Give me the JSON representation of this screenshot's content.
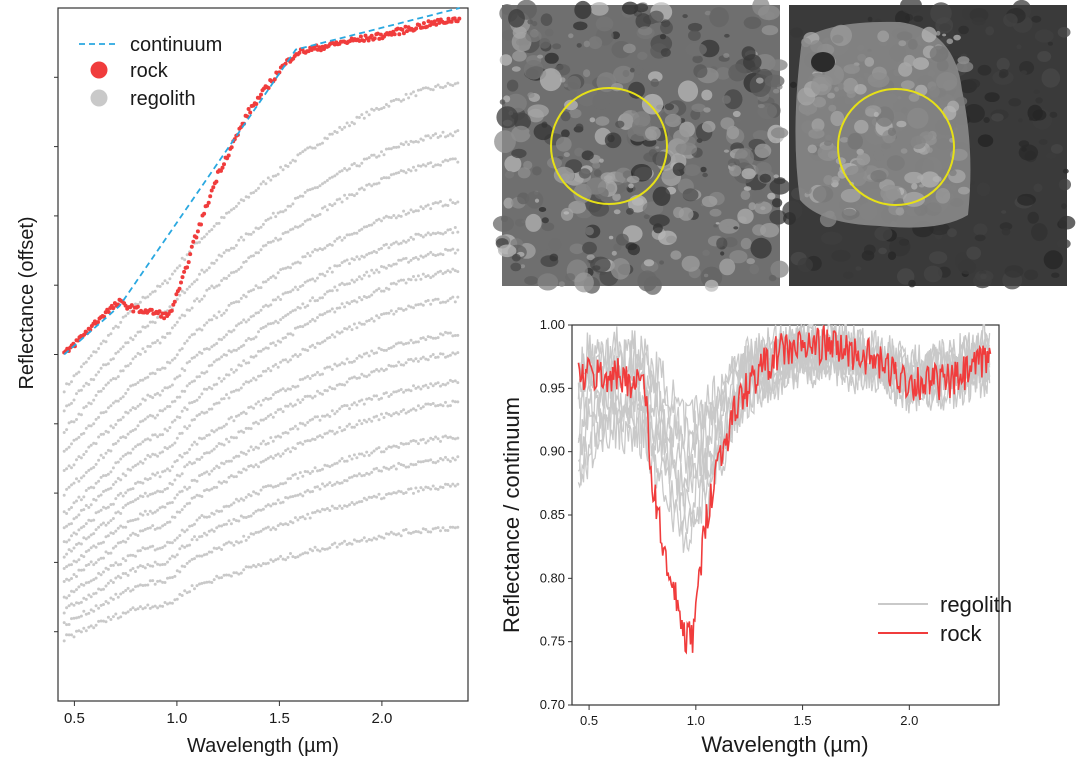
{
  "figure": {
    "photos": [
      {
        "name": "rock-closeup-photo",
        "tone": "#7d7d7d"
      },
      {
        "name": "boulder-photo",
        "tone": "#4a4a4a"
      }
    ],
    "colors": {
      "rock": "#f03c3c",
      "regolith": "#c9c9c9",
      "continuum": "#2aa8e0",
      "circle": "#e6e017",
      "axis": "#333333"
    }
  },
  "chart_data": [
    {
      "type": "scatter",
      "title": "",
      "xlabel": "Wavelength (µm)",
      "ylabel": "Reflectance (offset)",
      "xlim": [
        0.42,
        2.42
      ],
      "x_ticks": [
        0.5,
        1.0,
        1.5,
        2.0
      ],
      "x_tick_labels": [
        "0.5",
        "1.0",
        "1.5",
        "2.0"
      ],
      "y_tick_labels_shown": false,
      "legend": {
        "position": "top-left",
        "entries": [
          "continuum",
          "rock",
          "regolith"
        ]
      },
      "series": [
        {
          "name": "continuum",
          "style": "dashed-line",
          "points": [
            [
              0.45,
              0.5
            ],
            [
              0.72,
              0.57
            ],
            [
              1.58,
              0.94
            ],
            [
              2.38,
              1.0
            ]
          ]
        },
        {
          "name": "rock",
          "style": "dots",
          "anchors": [
            [
              0.45,
              0.5
            ],
            [
              0.55,
              0.53
            ],
            [
              0.65,
              0.56
            ],
            [
              0.72,
              0.575
            ],
            [
              0.8,
              0.565
            ],
            [
              0.9,
              0.56
            ],
            [
              0.96,
              0.555
            ],
            [
              1.02,
              0.6
            ],
            [
              1.08,
              0.66
            ],
            [
              1.2,
              0.76
            ],
            [
              1.35,
              0.85
            ],
            [
              1.5,
              0.91
            ],
            [
              1.58,
              0.935
            ],
            [
              1.8,
              0.95
            ],
            [
              2.0,
              0.96
            ],
            [
              2.2,
              0.975
            ],
            [
              2.38,
              0.985
            ]
          ]
        },
        {
          "name": "regolith",
          "style": "dots",
          "count": 16,
          "starts_at_0.45": [
            0.45,
            0.42,
            0.39,
            0.36,
            0.33,
            0.3,
            0.27,
            0.25,
            0.23,
            0.21,
            0.19,
            0.17,
            0.15,
            0.13,
            0.11,
            0.09
          ],
          "ends_at_2.38": [
            0.89,
            0.82,
            0.78,
            0.72,
            0.68,
            0.65,
            0.62,
            0.58,
            0.53,
            0.5,
            0.46,
            0.43,
            0.38,
            0.35,
            0.31,
            0.25
          ]
        }
      ]
    },
    {
      "type": "line",
      "title": "",
      "xlabel": "Wavelength (µm)",
      "ylabel": "Reflectance / continuum",
      "xlim": [
        0.42,
        2.42
      ],
      "ylim": [
        0.7,
        1.0
      ],
      "x_ticks": [
        0.5,
        1.0,
        1.5,
        2.0
      ],
      "x_tick_labels": [
        "0.5",
        "1.0",
        "1.5",
        "2.0"
      ],
      "y_ticks": [
        0.7,
        0.75,
        0.8,
        0.85,
        0.9,
        0.95,
        1.0
      ],
      "y_tick_labels": [
        "0.70",
        "0.75",
        "0.80",
        "0.85",
        "0.90",
        "0.95",
        "1.00"
      ],
      "legend": {
        "position": "bottom-right",
        "entries": [
          "regolith",
          "rock"
        ]
      },
      "series": [
        {
          "name": "regolith",
          "style": "band",
          "upper": [
            [
              0.45,
              0.99
            ],
            [
              0.6,
              0.995
            ],
            [
              0.75,
              0.99
            ],
            [
              0.85,
              0.97
            ],
            [
              0.95,
              0.94
            ],
            [
              1.05,
              0.95
            ],
            [
              1.2,
              0.98
            ],
            [
              1.4,
              0.995
            ],
            [
              1.6,
              0.995
            ],
            [
              1.8,
              0.99
            ],
            [
              2.0,
              0.975
            ],
            [
              2.2,
              0.98
            ],
            [
              2.38,
              0.99
            ]
          ],
          "lower": [
            [
              0.45,
              0.86
            ],
            [
              0.5,
              0.9
            ],
            [
              0.6,
              0.92
            ],
            [
              0.75,
              0.91
            ],
            [
              0.85,
              0.87
            ],
            [
              0.95,
              0.83
            ],
            [
              1.05,
              0.86
            ],
            [
              1.2,
              0.93
            ],
            [
              1.4,
              0.96
            ],
            [
              1.6,
              0.97
            ],
            [
              1.8,
              0.96
            ],
            [
              2.0,
              0.945
            ],
            [
              2.2,
              0.95
            ],
            [
              2.38,
              0.96
            ]
          ]
        },
        {
          "name": "rock",
          "style": "line",
          "anchors": [
            [
              0.45,
              0.96
            ],
            [
              0.6,
              0.96
            ],
            [
              0.76,
              0.955
            ],
            [
              0.79,
              0.88
            ],
            [
              0.83,
              0.845
            ],
            [
              0.87,
              0.8
            ],
            [
              0.92,
              0.775
            ],
            [
              0.955,
              0.75
            ],
            [
              0.985,
              0.755
            ],
            [
              1.01,
              0.79
            ],
            [
              1.05,
              0.85
            ],
            [
              1.1,
              0.89
            ],
            [
              1.2,
              0.94
            ],
            [
              1.3,
              0.965
            ],
            [
              1.4,
              0.98
            ],
            [
              1.6,
              0.985
            ],
            [
              1.8,
              0.975
            ],
            [
              2.0,
              0.955
            ],
            [
              2.2,
              0.955
            ],
            [
              2.3,
              0.965
            ],
            [
              2.38,
              0.975
            ]
          ]
        }
      ]
    }
  ]
}
